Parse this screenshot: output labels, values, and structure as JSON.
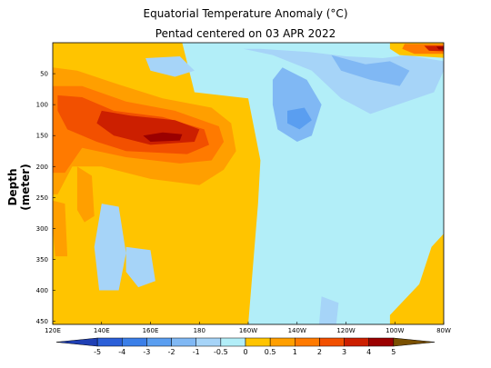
{
  "chart_data": {
    "type": "heatmap",
    "title": "Equatorial Temperature Anomaly (°C)",
    "subtitle": "Pentad centered on 03 APR 2022",
    "xlabel": "",
    "ylabel": "Depth (meter)",
    "x_ticks": [
      {
        "label": "120E",
        "lon": 120
      },
      {
        "label": "140E",
        "lon": 140
      },
      {
        "label": "160E",
        "lon": 160
      },
      {
        "label": "180",
        "lon": 180
      },
      {
        "label": "160W",
        "lon": 200
      },
      {
        "label": "140W",
        "lon": 220
      },
      {
        "label": "120W",
        "lon": 240
      },
      {
        "label": "100W",
        "lon": 260
      },
      {
        "label": "80W",
        "lon": 280
      }
    ],
    "xlim": [
      120,
      280
    ],
    "y_ticks": [
      {
        "label": "50",
        "depth": 50
      },
      {
        "label": "100",
        "depth": 100
      },
      {
        "label": "150",
        "depth": 150
      },
      {
        "label": "200",
        "depth": 200
      },
      {
        "label": "250",
        "depth": 250
      },
      {
        "label": "300",
        "depth": 300
      },
      {
        "label": "350",
        "depth": 350
      },
      {
        "label": "400",
        "depth": 400
      },
      {
        "label": "450",
        "depth": 450
      }
    ],
    "ylim": [
      0,
      455
    ],
    "y_inverted": true,
    "colorbar": {
      "labels": [
        "-5",
        "-4",
        "-3",
        "-2",
        "-1",
        "-0.5",
        "0",
        "0.5",
        "1",
        "2",
        "3",
        "4",
        "5"
      ],
      "colors": [
        "#1f3fb4",
        "#2b5fd8",
        "#3b7fe8",
        "#5a9ef0",
        "#80b8f4",
        "#a6d4f8",
        "#b2eef8",
        "#ffc400",
        "#ff9f00",
        "#ff7a00",
        "#f25000",
        "#cc1f00",
        "#9b0000",
        "#7a5000"
      ]
    },
    "anomaly_regions": [
      {
        "level": 0.5,
        "poly": [
          [
            120,
            0
          ],
          [
            173,
            0
          ],
          [
            178,
            80
          ],
          [
            200,
            90
          ],
          [
            205,
            190
          ],
          [
            204,
            260
          ],
          [
            200,
            455
          ],
          [
            120,
            455
          ]
        ]
      },
      {
        "level": 0.5,
        "poly": [
          [
            258,
            440
          ],
          [
            270,
            390
          ],
          [
            275,
            330
          ],
          [
            282,
            300
          ],
          [
            282,
            455
          ],
          [
            258,
            455
          ]
        ]
      },
      {
        "level": 1,
        "poly": [
          [
            120,
            40
          ],
          [
            130,
            45
          ],
          [
            145,
            65
          ],
          [
            165,
            90
          ],
          [
            185,
            105
          ],
          [
            193,
            130
          ],
          [
            195,
            175
          ],
          [
            190,
            205
          ],
          [
            180,
            230
          ],
          [
            160,
            220
          ],
          [
            140,
            200
          ],
          [
            128,
            200
          ],
          [
            122,
            245
          ],
          [
            120,
            245
          ]
        ]
      },
      {
        "level": 1,
        "poly": [
          [
            130,
            200
          ],
          [
            136,
            215
          ],
          [
            137,
            280
          ],
          [
            133,
            290
          ],
          [
            130,
            270
          ]
        ]
      },
      {
        "level": 1,
        "poly": [
          [
            120,
            255
          ],
          [
            125,
            260
          ],
          [
            126,
            345
          ],
          [
            121,
            345
          ],
          [
            120,
            300
          ]
        ]
      },
      {
        "level": 2,
        "poly": [
          [
            120,
            70
          ],
          [
            132,
            70
          ],
          [
            150,
            95
          ],
          [
            170,
            110
          ],
          [
            188,
            135
          ],
          [
            190,
            160
          ],
          [
            185,
            190
          ],
          [
            172,
            195
          ],
          [
            150,
            185
          ],
          [
            132,
            170
          ],
          [
            125,
            210
          ],
          [
            120,
            210
          ]
        ]
      },
      {
        "level": 3,
        "poly": [
          [
            122,
            85
          ],
          [
            132,
            88
          ],
          [
            145,
            110
          ],
          [
            165,
            120
          ],
          [
            182,
            140
          ],
          [
            184,
            165
          ],
          [
            175,
            180
          ],
          [
            150,
            175
          ],
          [
            138,
            160
          ],
          [
            126,
            140
          ],
          [
            122,
            110
          ]
        ]
      },
      {
        "level": 4,
        "poly": [
          [
            140,
            110
          ],
          [
            152,
            118
          ],
          [
            170,
            125
          ],
          [
            180,
            140
          ],
          [
            178,
            160
          ],
          [
            160,
            165
          ],
          [
            145,
            150
          ],
          [
            138,
            130
          ]
        ]
      },
      {
        "level": 5,
        "poly": [
          [
            157,
            150
          ],
          [
            165,
            145
          ],
          [
            173,
            148
          ],
          [
            172,
            158
          ],
          [
            160,
            160
          ]
        ]
      },
      {
        "level": -0.5,
        "poly": [
          [
            178,
            10
          ],
          [
            198,
            10
          ],
          [
            210,
            20
          ],
          [
            226,
            45
          ],
          [
            238,
            90
          ],
          [
            250,
            115
          ],
          [
            276,
            80
          ],
          [
            280,
            45
          ],
          [
            280,
            30
          ],
          [
            265,
            20
          ],
          [
            255,
            25
          ],
          [
            240,
            22
          ],
          [
            225,
            15
          ],
          [
            205,
            10
          ]
        ]
      },
      {
        "level": -0.5,
        "poly": [
          [
            158,
            25
          ],
          [
            172,
            22
          ],
          [
            178,
            45
          ],
          [
            170,
            55
          ],
          [
            160,
            45
          ]
        ]
      },
      {
        "level": -0.5,
        "poly": [
          [
            140,
            260
          ],
          [
            147,
            265
          ],
          [
            150,
            340
          ],
          [
            147,
            400
          ],
          [
            139,
            400
          ],
          [
            137,
            330
          ]
        ]
      },
      {
        "level": -0.5,
        "poly": [
          [
            150,
            330
          ],
          [
            160,
            335
          ],
          [
            162,
            385
          ],
          [
            155,
            395
          ],
          [
            150,
            370
          ]
        ]
      },
      {
        "level": -0.5,
        "poly": [
          [
            230,
            410
          ],
          [
            237,
            420
          ],
          [
            236,
            455
          ],
          [
            229,
            455
          ]
        ]
      },
      {
        "level": -1,
        "poly": [
          [
            214,
            40
          ],
          [
            224,
            60
          ],
          [
            230,
            100
          ],
          [
            226,
            150
          ],
          [
            220,
            160
          ],
          [
            212,
            140
          ],
          [
            210,
            100
          ],
          [
            210,
            60
          ]
        ]
      },
      {
        "level": -1,
        "poly": [
          [
            234,
            20
          ],
          [
            248,
            35
          ],
          [
            258,
            30
          ],
          [
            266,
            45
          ],
          [
            262,
            70
          ],
          [
            250,
            60
          ],
          [
            238,
            45
          ]
        ]
      },
      {
        "level": -2,
        "poly": [
          [
            216,
            110
          ],
          [
            223,
            105
          ],
          [
            226,
            125
          ],
          [
            221,
            140
          ],
          [
            216,
            130
          ]
        ]
      },
      {
        "level": 0.5,
        "poly": [
          [
            258,
            0
          ],
          [
            282,
            0
          ],
          [
            282,
            25
          ],
          [
            262,
            20
          ],
          [
            258,
            10
          ]
        ]
      },
      {
        "level": 2,
        "poly": [
          [
            264,
            2
          ],
          [
            282,
            2
          ],
          [
            282,
            18
          ],
          [
            268,
            18
          ],
          [
            263,
            10
          ]
        ]
      },
      {
        "level": 4,
        "poly": [
          [
            272,
            5
          ],
          [
            282,
            5
          ],
          [
            282,
            14
          ],
          [
            274,
            13
          ]
        ]
      },
      {
        "level": 5,
        "poly": [
          [
            277,
            6
          ],
          [
            282,
            6
          ],
          [
            282,
            11
          ],
          [
            278,
            11
          ]
        ]
      }
    ]
  }
}
